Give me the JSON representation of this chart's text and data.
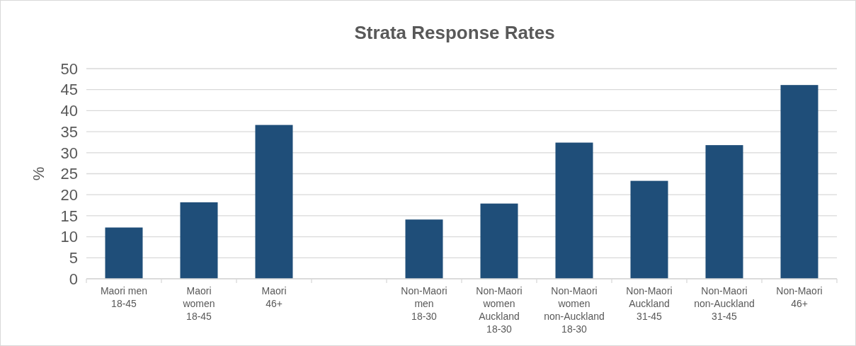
{
  "chart_data": {
    "type": "bar",
    "title": "Strata Response Rates",
    "ylabel": "%",
    "categories": [
      "Maori men\n18-45",
      "Maori\nwomen\n18-45",
      "Maori\n46+",
      null,
      "Non-Maori\nmen\n18-30",
      "Non-Maori\nwomen\nAuckland\n18-30",
      "Non-Maori\nwomen\nnon-Auckland\n18-30",
      "Non-Maori\nAuckland\n31-45",
      "Non-Maori\nnon-Auckland\n31-45",
      "Non-Maori\n46+"
    ],
    "values": [
      12.2,
      18.2,
      36.6,
      null,
      14.1,
      17.9,
      32.4,
      23.3,
      31.8,
      46.1
    ],
    "color": "#1f4e79",
    "ylim": [
      0,
      50
    ],
    "yticks": [
      0,
      5,
      10,
      15,
      20,
      25,
      30,
      35,
      40,
      45,
      50
    ],
    "grid": "y"
  }
}
